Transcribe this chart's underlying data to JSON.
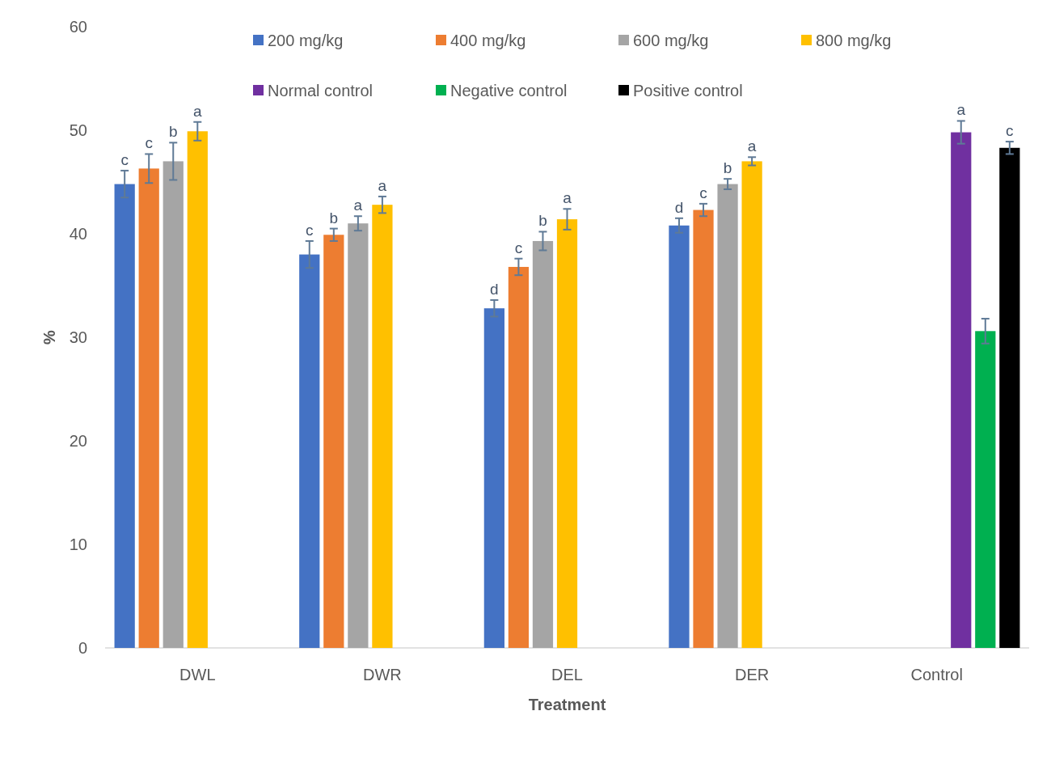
{
  "chart_data": {
    "type": "bar",
    "xlabel": "Treatment",
    "ylabel": "%",
    "categories": [
      "DWL",
      "DWR",
      "DEL",
      "DER",
      "Control"
    ],
    "ylim": [
      0,
      60
    ],
    "yticks": [
      0,
      10,
      20,
      30,
      40,
      50,
      60
    ],
    "grid": false,
    "legend": "top",
    "series": [
      {
        "name": "200 mg/kg",
        "color": "#4472c4",
        "values": [
          44.8,
          38.0,
          32.8,
          40.8,
          null
        ],
        "errors": [
          1.3,
          1.3,
          0.8,
          0.7,
          null
        ],
        "value_labels": [
          "c",
          "c",
          "d",
          "d",
          null
        ]
      },
      {
        "name": "400 mg/kg",
        "color": "#ed7d31",
        "values": [
          46.3,
          39.9,
          36.8,
          42.3,
          null
        ],
        "errors": [
          1.4,
          0.6,
          0.8,
          0.6,
          null
        ],
        "value_labels": [
          "c",
          "b",
          "c",
          "c",
          null
        ]
      },
      {
        "name": "600 mg/kg",
        "color": "#a5a5a5",
        "values": [
          47.0,
          41.0,
          39.3,
          44.8,
          null
        ],
        "errors": [
          1.8,
          0.7,
          0.9,
          0.5,
          null
        ],
        "value_labels": [
          "b",
          "a",
          "b",
          "b",
          null
        ]
      },
      {
        "name": "800 mg/kg",
        "color": "#ffc000",
        "values": [
          49.9,
          42.8,
          41.4,
          47.0,
          null
        ],
        "errors": [
          0.9,
          0.8,
          1.0,
          0.4,
          null
        ],
        "value_labels": [
          "a",
          "a",
          "a",
          "a",
          null
        ]
      },
      {
        "name": "Normal control",
        "color": "#7030a0",
        "values": [
          null,
          null,
          null,
          null,
          49.8
        ],
        "errors": [
          null,
          null,
          null,
          null,
          1.1
        ],
        "value_labels": [
          null,
          null,
          null,
          null,
          "a"
        ]
      },
      {
        "name": "Negative control",
        "color": "#00b050",
        "values": [
          null,
          null,
          null,
          null,
          30.6
        ],
        "errors": [
          null,
          null,
          null,
          null,
          1.2
        ],
        "value_labels": [
          null,
          null,
          null,
          null,
          null
        ]
      },
      {
        "name": "Positive control",
        "color": "#000000",
        "values": [
          null,
          null,
          null,
          null,
          48.3
        ],
        "errors": [
          null,
          null,
          null,
          null,
          0.6
        ],
        "value_labels": [
          null,
          null,
          null,
          null,
          "c"
        ]
      }
    ]
  }
}
